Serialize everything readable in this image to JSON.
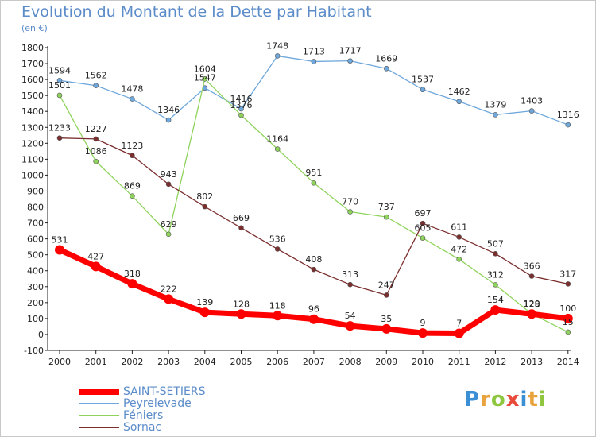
{
  "title": "Evolution du Montant de la Dette par Habitant",
  "unit": "(en €)",
  "logo": {
    "letters": [
      "P",
      "r",
      "o",
      "x",
      "i",
      "t",
      "i"
    ],
    "colors": [
      "#3b8fd4",
      "#e8a33d",
      "#8fc63f",
      "#e84b3c",
      "#3b8fd4",
      "#e8a33d",
      "#8fc63f"
    ]
  },
  "chart_data": {
    "type": "line",
    "x": [
      "2000",
      "2001",
      "2002",
      "2003",
      "2004",
      "2005",
      "2006",
      "2007",
      "2008",
      "2009",
      "2010",
      "2011",
      "2012",
      "2013",
      "2014"
    ],
    "ylim": [
      -100,
      1800
    ],
    "yticks": [
      -100,
      0,
      100,
      200,
      300,
      400,
      500,
      600,
      700,
      800,
      900,
      1000,
      1100,
      1200,
      1300,
      1400,
      1500,
      1600,
      1700,
      1800
    ],
    "grid": false,
    "legend_position": "bottom-left",
    "series": [
      {
        "name": "SAINT-SETIERS",
        "color": "#ff0000",
        "values": [
          531,
          427,
          318,
          222,
          139,
          128,
          118,
          96,
          54,
          35,
          9,
          7,
          154,
          128,
          100
        ]
      },
      {
        "name": "Peyrelevade",
        "color": "#6fa8dc",
        "values": [
          1594,
          1562,
          1478,
          1346,
          1547,
          1416,
          1748,
          1713,
          1717,
          1669,
          1537,
          1462,
          1379,
          1403,
          1316
        ]
      },
      {
        "name": "Féniers",
        "color": "#8fd35c",
        "values": [
          1501,
          1086,
          869,
          629,
          1604,
          1376,
          1164,
          951,
          770,
          737,
          605,
          472,
          312,
          129,
          15
        ]
      },
      {
        "name": "Sornac",
        "color": "#7b2e2e",
        "values": [
          1233,
          1227,
          1123,
          943,
          802,
          669,
          536,
          408,
          313,
          247,
          697,
          611,
          507,
          366,
          317
        ]
      }
    ]
  }
}
